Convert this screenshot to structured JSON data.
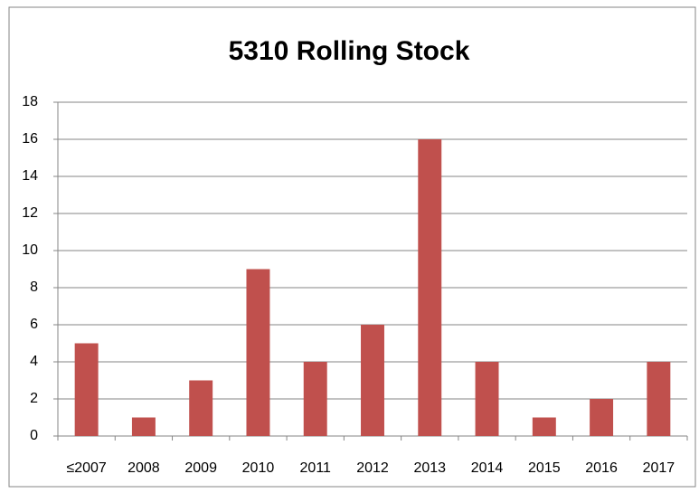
{
  "chart_data": {
    "type": "bar",
    "title": "5310 Rolling Stock",
    "categories": [
      "≤2007",
      "2008",
      "2009",
      "2010",
      "2011",
      "2012",
      "2013",
      "2014",
      "2015",
      "2016",
      "2017"
    ],
    "values": [
      5,
      1,
      3,
      9,
      4,
      6,
      16,
      4,
      1,
      2,
      4
    ],
    "color": "#c0504d",
    "ylim": [
      0,
      18
    ],
    "yticks": [
      0,
      2,
      4,
      6,
      8,
      10,
      12,
      14,
      16,
      18
    ],
    "grid": true
  }
}
